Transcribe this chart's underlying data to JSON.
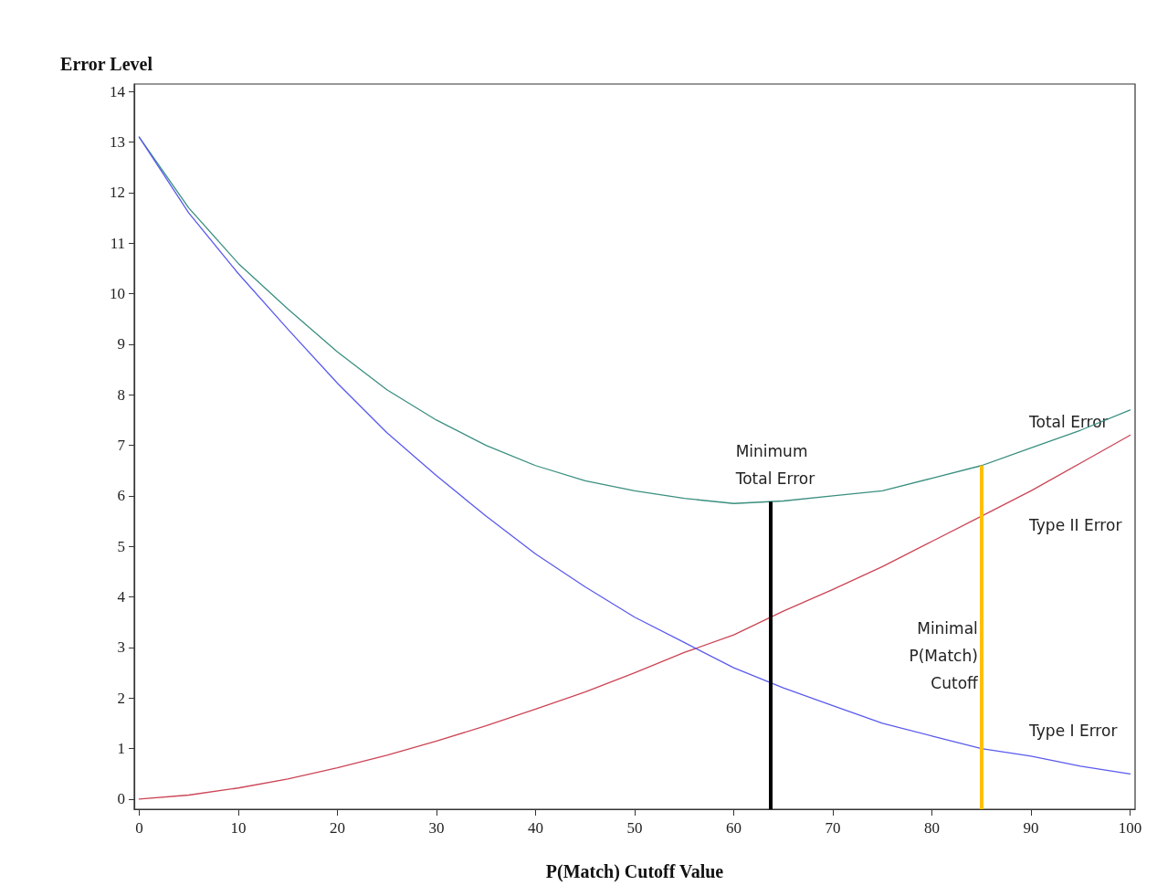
{
  "chart_data": {
    "type": "line",
    "xlabel": "P(Match) Cutoff Value",
    "ylabel": "Error Level",
    "x": [
      0,
      5,
      10,
      15,
      20,
      25,
      30,
      35,
      40,
      45,
      50,
      55,
      60,
      65,
      70,
      75,
      80,
      85,
      90,
      95,
      100
    ],
    "series": [
      {
        "name": "Total Error",
        "color": "#3a8f80",
        "values": [
          13.1,
          11.7,
          10.6,
          9.7,
          8.85,
          8.1,
          7.5,
          7.0,
          6.6,
          6.3,
          6.1,
          5.95,
          5.85,
          5.9,
          6.0,
          6.1,
          6.35,
          6.6,
          6.95,
          7.3,
          7.7
        ]
      },
      {
        "name": "Type II Error",
        "color": "#cc4455",
        "values": [
          0,
          0.08,
          0.22,
          0.4,
          0.62,
          0.87,
          1.15,
          1.45,
          1.78,
          2.12,
          2.5,
          2.9,
          3.25,
          3.72,
          4.15,
          4.6,
          5.1,
          5.6,
          6.1,
          6.65,
          7.2
        ]
      },
      {
        "name": "Type I Error",
        "color": "#5a5aee",
        "values": [
          13.1,
          11.6,
          10.4,
          9.3,
          8.23,
          7.25,
          6.4,
          5.6,
          4.85,
          4.2,
          3.6,
          3.1,
          2.6,
          2.2,
          1.85,
          1.5,
          1.25,
          1.0,
          0.85,
          0.65,
          0.5
        ]
      }
    ],
    "ref_lines": [
      {
        "axis": "x",
        "value": 63.7,
        "label": "Minimum\nTotal Error",
        "color": "#000000"
      },
      {
        "axis": "x",
        "value": 85,
        "label": "Minimal\nP(Match)\nCutoff",
        "color": "#ffc000"
      }
    ],
    "xlim": [
      -0.5,
      100.5
    ],
    "ylim": [
      -0.2,
      14.15
    ],
    "xticks": [
      0,
      10,
      20,
      30,
      40,
      50,
      60,
      70,
      80,
      90,
      100
    ],
    "yticks": [
      0,
      1,
      2,
      3,
      4,
      5,
      6,
      7,
      8,
      9,
      10,
      11,
      12,
      13,
      14
    ],
    "marker": "none",
    "legend": false,
    "grid": false
  }
}
